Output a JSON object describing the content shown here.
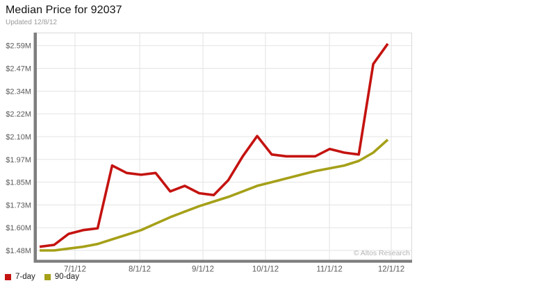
{
  "header": {
    "title": "Median Price for 92037",
    "subtitle": "Updated 12/8/12"
  },
  "watermark": "© Altos Research",
  "colors": {
    "series_7day": "#c41310",
    "series_90day": "#a5a018",
    "axis_bar": "#7e7e7e",
    "gridline": "#e3e3e3",
    "plot_border": "#d9d9d9",
    "tick_label": "#5a5a5a",
    "watermark_gray": "#b3b3b3"
  },
  "chart_data": {
    "type": "line",
    "title": "Median Price for 92037",
    "subtitle": "Updated 12/8/12",
    "xlabel": "",
    "ylabel": "",
    "x_unit": "weekly samples, mid-June 2012 to early December 2012",
    "x_tick_labels": [
      "7/1/12",
      "8/1/12",
      "9/1/12",
      "10/1/12",
      "11/1/12",
      "12/1/12"
    ],
    "x_tick_week_positions": [
      2.44,
      6.9,
      11.26,
      15.57,
      19.98,
      24.24
    ],
    "y_tick_labels": [
      "$1.48M",
      "$1.60M",
      "$1.73M",
      "$1.85M",
      "$1.97M",
      "$2.10M",
      "$2.22M",
      "$2.34M",
      "$2.47M",
      "$2.59M"
    ],
    "y_tick_values": [
      1.48,
      1.60333,
      1.72667,
      1.85,
      1.97333,
      2.09667,
      2.22,
      2.34333,
      2.46667,
      2.59
    ],
    "ylim": [
      1.43,
      2.65
    ],
    "grid": true,
    "legend_position": "bottom-left",
    "series": [
      {
        "name": "7-day",
        "color": "#c41310",
        "values": [
          1.5,
          1.51,
          1.57,
          1.59,
          1.6,
          1.94,
          1.9,
          1.89,
          1.9,
          1.8,
          1.83,
          1.79,
          1.78,
          1.86,
          1.99,
          2.1,
          2.0,
          1.99,
          1.99,
          1.99,
          2.03,
          2.01,
          2.0,
          2.49,
          2.6
        ]
      },
      {
        "name": "90-day",
        "color": "#a5a018",
        "values": [
          1.48,
          1.48,
          1.49,
          1.5,
          1.515,
          1.54,
          1.565,
          1.59,
          1.625,
          1.66,
          1.69,
          1.72,
          1.745,
          1.77,
          1.8,
          1.83,
          1.85,
          1.87,
          1.89,
          1.91,
          1.925,
          1.94,
          1.965,
          2.01,
          2.08
        ]
      }
    ]
  }
}
